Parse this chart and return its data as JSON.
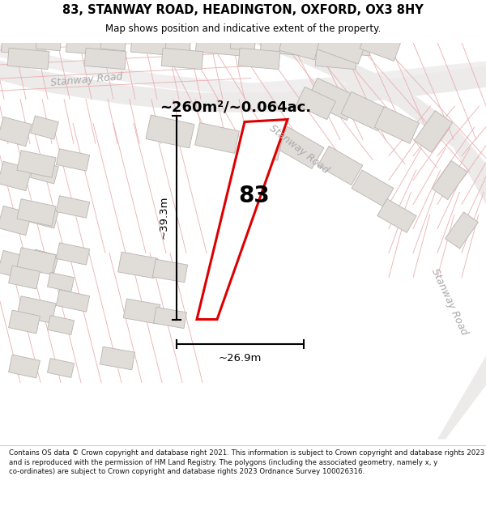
{
  "title_line1": "83, STANWAY ROAD, HEADINGTON, OXFORD, OX3 8HY",
  "title_line2": "Map shows position and indicative extent of the property.",
  "area_text": "~260m²/~0.064ac.",
  "number_label": "83",
  "dim_height": "~39.3m",
  "dim_width": "~26.9m",
  "road_label_upper": "Stanway Road",
  "road_label_mid": "Stanway Road",
  "road_label_lower": "Stanway Road",
  "footer": "Contains OS data © Crown copyright and database right 2021. This information is subject to Crown copyright and database rights 2023 and is reproduced with the permission of HM Land Registry. The polygons (including the associated geometry, namely x, y co-ordinates) are subject to Crown copyright and database rights 2023 Ordnance Survey 100026316.",
  "bg_color": "#ffffff",
  "map_bg": "#f7f5f5",
  "road_fill": "#e8e4e4",
  "road_edge": "#c8c0c0",
  "building_fill": "#e0dcd8",
  "building_edge": "#b8b4b0",
  "plot_fill": "#ffffff",
  "plot_edge": "#dd0000",
  "grid_line_color": "#e8b0b0",
  "road_label_color": "#aaaaaa",
  "title_color": "#000000",
  "footer_color": "#111111",
  "title_fontsize": 10.5,
  "subtitle_fontsize": 8.5,
  "area_fontsize": 13,
  "number_fontsize": 20,
  "road_label_fontsize": 9,
  "dim_fontsize": 9.5,
  "footer_fontsize": 6.2
}
